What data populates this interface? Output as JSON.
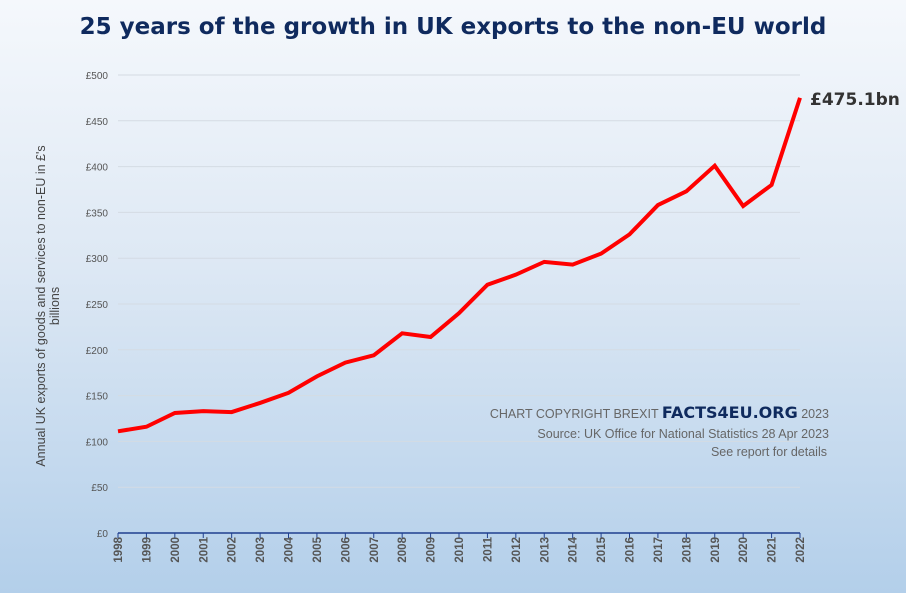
{
  "chart_data": {
    "type": "line",
    "title": "25 years of the growth in UK exports to the non-EU world",
    "xlabel": "",
    "ylabel": "Annual UK exports of goods and services to non-EU in £'s billions",
    "ylim": [
      0,
      500
    ],
    "yticks": [
      "£0",
      "£50",
      "£100",
      "£150",
      "£200",
      "£250",
      "£300",
      "£350",
      "£400",
      "£450",
      "£500"
    ],
    "grid": true,
    "categories": [
      "1998",
      "1999",
      "2000",
      "2001",
      "2002",
      "2003",
      "2004",
      "2005",
      "2006",
      "2007",
      "2008",
      "2009",
      "2010",
      "2011",
      "2012",
      "2013",
      "2014",
      "2015",
      "2016",
      "2017",
      "2018",
      "2019",
      "2020",
      "2021",
      "2022"
    ],
    "series": [
      {
        "name": "UK exports to non-EU",
        "color": "#ff0000",
        "values": [
          111,
          116,
          131,
          133,
          132,
          142,
          153,
          171,
          186,
          194,
          218,
          214,
          240,
          271,
          282,
          296,
          293,
          305,
          326,
          358,
          373,
          401,
          357,
          380,
          475.1
        ]
      }
    ],
    "annotation": "£475.1bn"
  },
  "credits": {
    "line1_prefix": "CHART COPYRIGHT BREXIT",
    "brand": "FACTS4EU.ORG",
    "line1_suffix": "2023",
    "line2": "Source: UK Office for National Statistics 28 Apr 2023",
    "line3": "See report for details"
  }
}
